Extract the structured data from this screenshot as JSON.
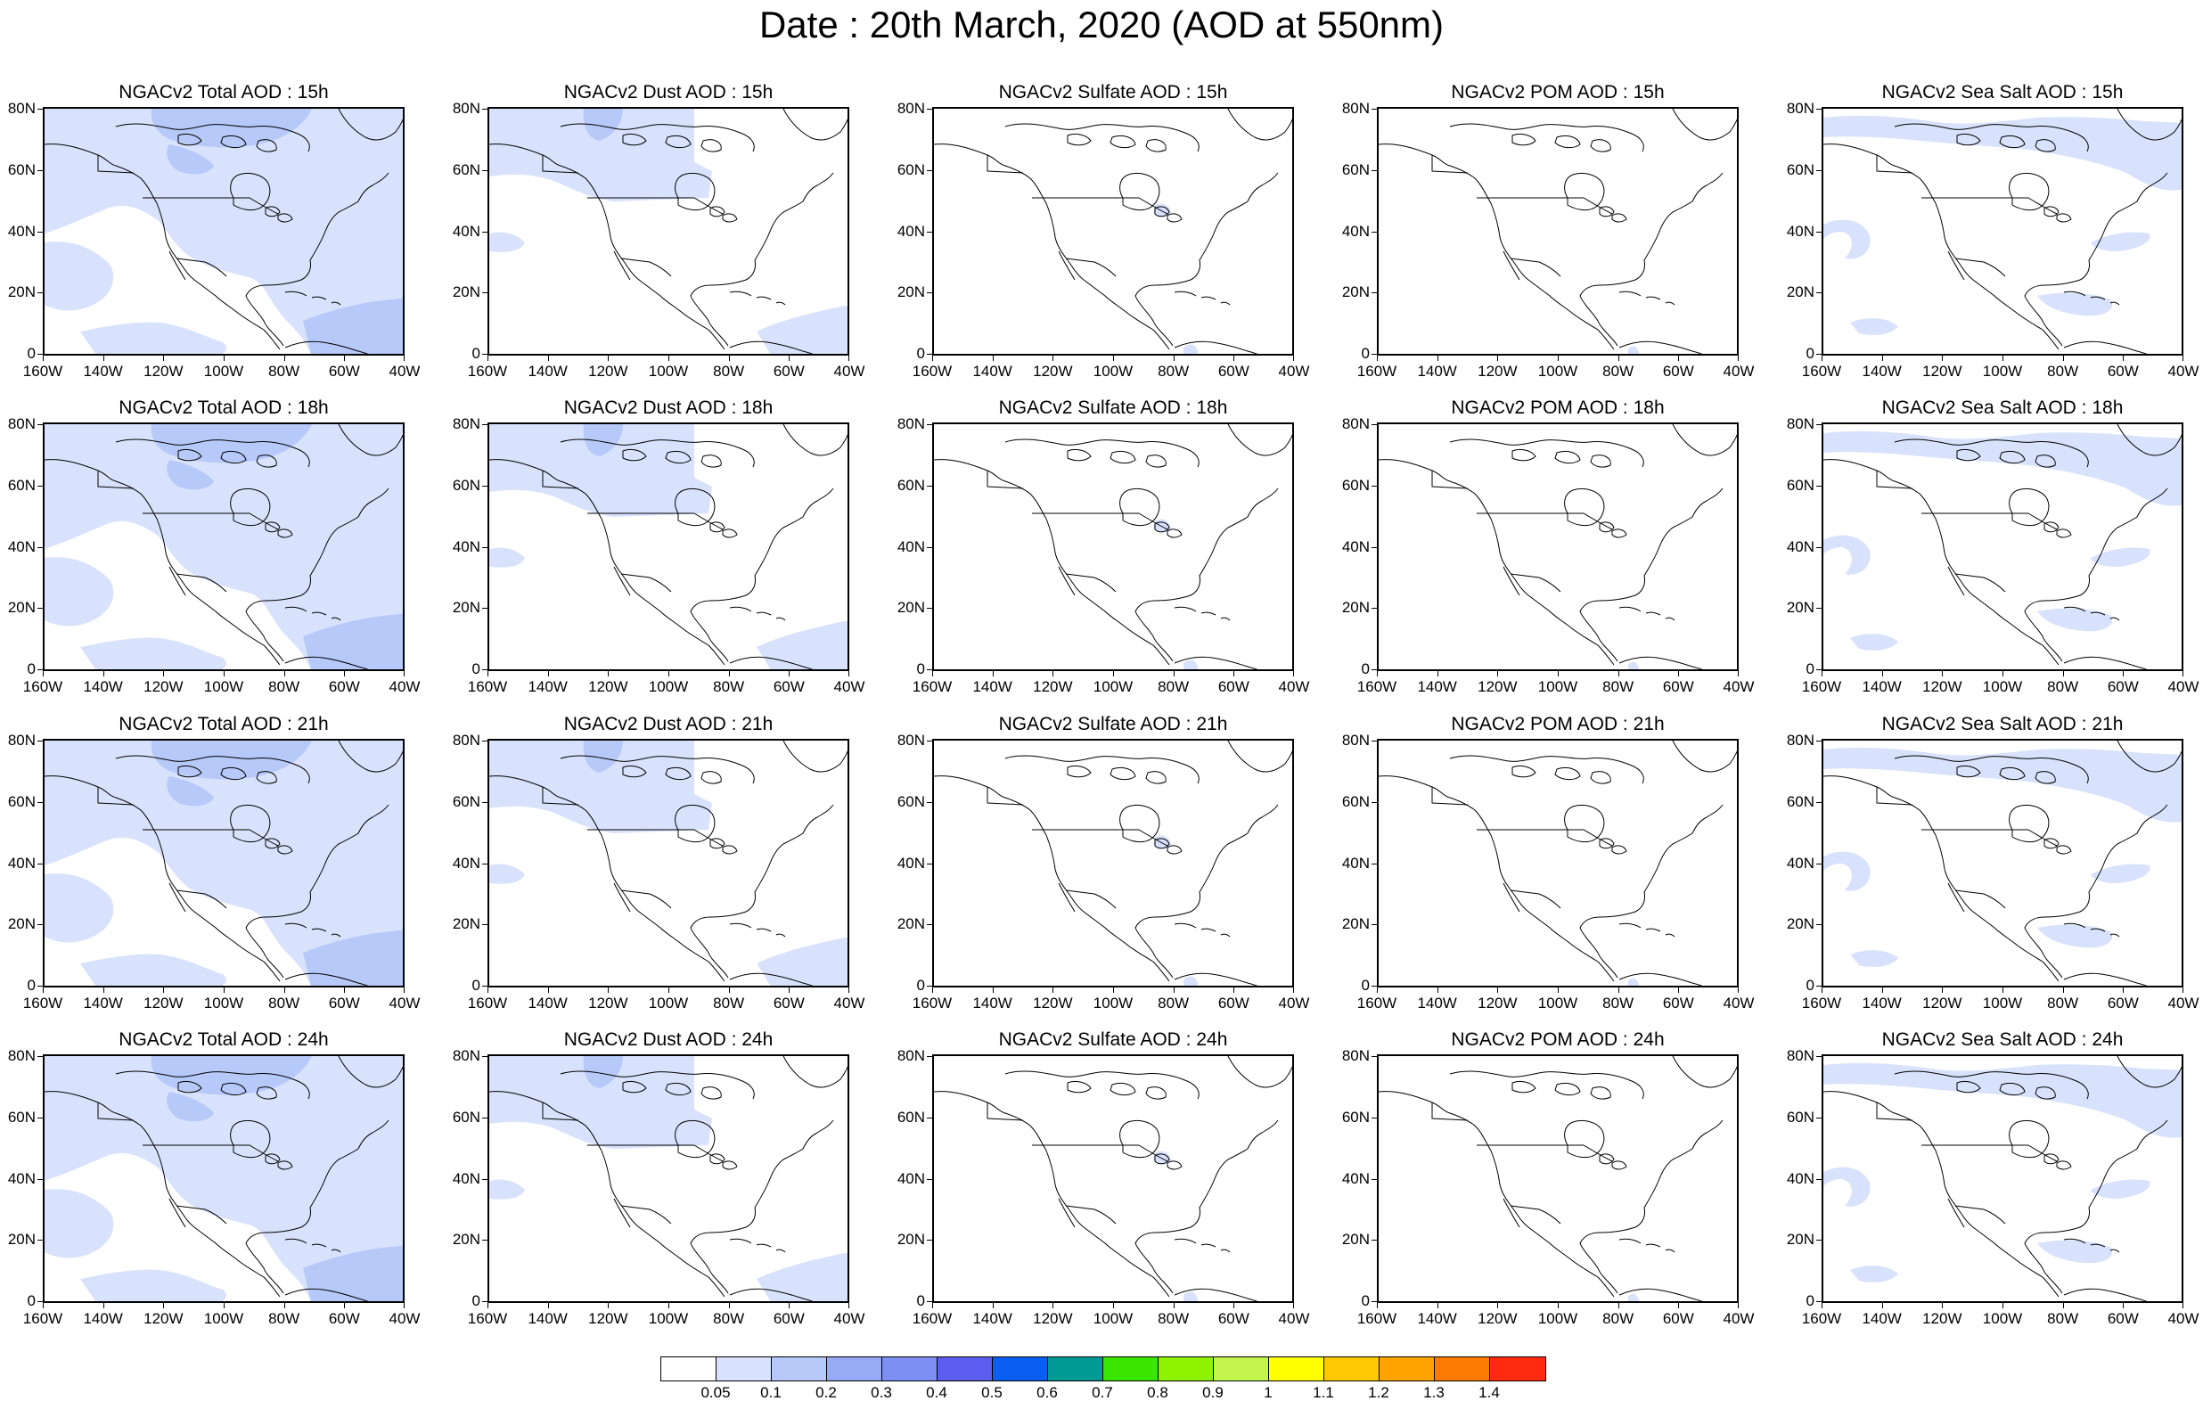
{
  "page": {
    "title": "Date : 20th March, 2020 (AOD at 550nm)"
  },
  "panels": {
    "titles": [
      [
        "NGACv2 Total AOD : 15h",
        "NGACv2 Dust AOD : 15h",
        "NGACv2 Sulfate AOD : 15h",
        "NGACv2 POM AOD : 15h",
        "NGACv2 Sea Salt AOD : 15h"
      ],
      [
        "NGACv2 Total AOD : 18h",
        "NGACv2 Dust AOD : 18h",
        "NGACv2 Sulfate AOD : 18h",
        "NGACv2 POM AOD : 18h",
        "NGACv2 Sea Salt AOD : 18h"
      ],
      [
        "NGACv2 Total AOD : 21h",
        "NGACv2 Dust AOD : 21h",
        "NGACv2 Sulfate AOD : 21h",
        "NGACv2 POM AOD : 21h",
        "NGACv2 Sea Salt AOD : 21h"
      ],
      [
        "NGACv2 Total AOD : 24h",
        "NGACv2 Dust AOD : 24h",
        "NGACv2 Sulfate AOD : 24h",
        "NGACv2 POM AOD : 24h",
        "NGACv2 Sea Salt  AOD : 24h"
      ]
    ],
    "types": [
      "total",
      "dust",
      "sulfate",
      "pom",
      "seasalt"
    ]
  },
  "axes": {
    "y_labels": [
      "80N",
      "60N",
      "40N",
      "20N",
      "0"
    ],
    "x_labels": [
      "160W",
      "140W",
      "120W",
      "100W",
      "80W",
      "60W",
      "40W"
    ]
  },
  "colorbar": {
    "colors": [
      "#ffffff",
      "#d8e2fc",
      "#b7c9f9",
      "#96aaf6",
      "#7e8ff4",
      "#5d5def",
      "#0a5ff2",
      "#009a94",
      "#3ae600",
      "#8ff200",
      "#c4f54c",
      "#ffff00",
      "#ffc800",
      "#ffa300",
      "#ff7a00",
      "#ff2a10"
    ],
    "labels": [
      "0.05",
      "0.1",
      "0.2",
      "0.3",
      "0.4",
      "0.5",
      "0.6",
      "0.7",
      "0.8",
      "0.9",
      "1",
      "1.1",
      "1.2",
      "1.3",
      "1.4"
    ]
  },
  "colors": {
    "aod_low": "#d8e2fc",
    "aod_mid": "#b7c9f9",
    "coast": "#000000"
  }
}
